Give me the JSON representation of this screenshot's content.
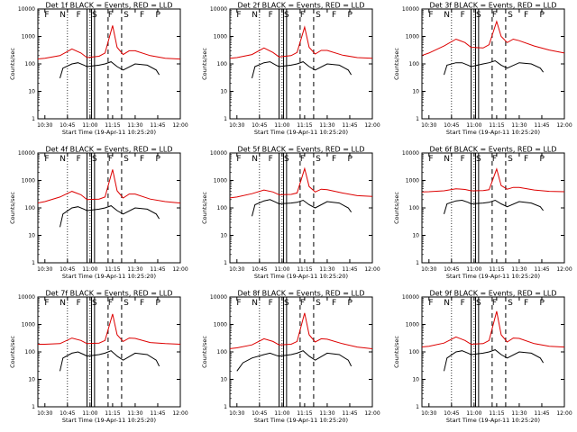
{
  "figure": {
    "background": "#ffffff"
  },
  "chart_data": {
    "type": "line",
    "y_scale": "log",
    "ylim": [
      1,
      10000
    ],
    "y_ticks": [
      "1",
      "10",
      "100",
      "1000",
      "10000"
    ],
    "x_range": [
      "10:25:20",
      "12:00"
    ],
    "x_ticks": [
      "10:30",
      "10:45",
      "11:00",
      "11:15",
      "11:30",
      "11:45",
      "12:00"
    ],
    "ylabel": "Counts/sec",
    "xlabel": "Start Time (19-Apr-11 10:25:20)",
    "colors": {
      "events": "#000000",
      "lld": "#dd0000"
    },
    "dotted_lines": [
      "10:45",
      "11:00"
    ],
    "solid_lines": [
      "10:58",
      "11:01",
      "11:03"
    ],
    "dashed_lines": [
      "11:12",
      "11:21"
    ],
    "markers": [
      "F",
      "N",
      "F",
      "S",
      "F",
      "S",
      "F",
      "P"
    ],
    "panels": [
      {
        "title": "Det 1f BLACK = Events, RED = LLD",
        "series": [
          {
            "name": "Events",
            "x": [
              "10:40",
              "10:42",
              "10:48",
              "10:52",
              "10:56",
              "10:58",
              "11:06",
              "11:10",
              "11:14",
              "11:18",
              "11:22",
              "11:30",
              "11:38",
              "11:44",
              "11:46"
            ],
            "y": [
              30,
              70,
              100,
              110,
              90,
              80,
              90,
              100,
              120,
              80,
              60,
              100,
              90,
              60,
              40
            ]
          },
          {
            "name": "LLD",
            "x": [
              "10:25",
              "10:30",
              "10:40",
              "10:48",
              "10:54",
              "10:58",
              "11:06",
              "11:10",
              "11:15",
              "11:18",
              "11:22",
              "11:26",
              "11:30",
              "11:40",
              "11:50",
              "12:00"
            ],
            "y": [
              150,
              160,
              200,
              350,
              250,
              170,
              190,
              250,
              2500,
              400,
              220,
              300,
              300,
              200,
              160,
              150
            ]
          }
        ]
      },
      {
        "title": "Det 2f BLACK = Events, RED = LLD",
        "series": [
          {
            "name": "Events",
            "x": [
              "10:40",
              "10:42",
              "10:48",
              "10:52",
              "10:56",
              "10:58",
              "11:06",
              "11:10",
              "11:14",
              "11:18",
              "11:22",
              "11:30",
              "11:38",
              "11:44",
              "11:46"
            ],
            "y": [
              30,
              80,
              110,
              120,
              90,
              80,
              90,
              100,
              120,
              80,
              60,
              100,
              90,
              60,
              40
            ]
          },
          {
            "name": "LLD",
            "x": [
              "10:25",
              "10:30",
              "10:40",
              "10:48",
              "10:54",
              "10:58",
              "11:06",
              "11:10",
              "11:15",
              "11:18",
              "11:22",
              "11:26",
              "11:30",
              "11:40",
              "11:50",
              "12:00"
            ],
            "y": [
              160,
              170,
              220,
              380,
              260,
              180,
              200,
              260,
              2200,
              400,
              230,
              310,
              310,
              210,
              170,
              160
            ]
          }
        ]
      },
      {
        "title": "Det 3f BLACK = Events, RED = LLD",
        "series": [
          {
            "name": "Events",
            "x": [
              "10:40",
              "10:42",
              "10:48",
              "10:52",
              "10:56",
              "10:58",
              "11:06",
              "11:10",
              "11:14",
              "11:18",
              "11:22",
              "11:30",
              "11:38",
              "11:44",
              "11:46"
            ],
            "y": [
              40,
              90,
              110,
              110,
              90,
              80,
              100,
              110,
              130,
              90,
              70,
              110,
              100,
              70,
              50
            ]
          },
          {
            "name": "LLD",
            "x": [
              "10:25",
              "10:30",
              "10:40",
              "10:48",
              "10:54",
              "10:58",
              "11:06",
              "11:10",
              "11:15",
              "11:18",
              "11:22",
              "11:26",
              "11:30",
              "11:40",
              "11:50",
              "12:00"
            ],
            "y": [
              200,
              250,
              450,
              800,
              600,
              400,
              380,
              500,
              3500,
              1000,
              600,
              800,
              700,
              450,
              320,
              250
            ]
          }
        ]
      },
      {
        "title": "Det 4f BLACK = Events, RED = LLD",
        "series": [
          {
            "name": "Events",
            "x": [
              "10:40",
              "10:42",
              "10:48",
              "10:52",
              "10:56",
              "10:58",
              "11:06",
              "11:10",
              "11:14",
              "11:18",
              "11:22",
              "11:30",
              "11:38",
              "11:44",
              "11:46"
            ],
            "y": [
              20,
              60,
              100,
              110,
              90,
              80,
              90,
              100,
              120,
              80,
              60,
              100,
              90,
              60,
              40
            ]
          },
          {
            "name": "LLD",
            "x": [
              "10:25",
              "10:30",
              "10:40",
              "10:48",
              "10:54",
              "10:58",
              "11:06",
              "11:10",
              "11:15",
              "11:18",
              "11:22",
              "11:26",
              "11:30",
              "11:40",
              "11:50",
              "12:00"
            ],
            "y": [
              150,
              170,
              250,
              400,
              300,
              200,
              210,
              250,
              2500,
              420,
              230,
              320,
              320,
              210,
              170,
              150
            ]
          }
        ]
      },
      {
        "title": "Det 5f BLACK = Events, RED = LLD",
        "series": [
          {
            "name": "Events",
            "x": [
              "10:40",
              "10:42",
              "10:48",
              "10:52",
              "10:56",
              "10:58",
              "11:06",
              "11:10",
              "11:14",
              "11:18",
              "11:22",
              "11:30",
              "11:38",
              "11:44",
              "11:46"
            ],
            "y": [
              50,
              130,
              180,
              200,
              160,
              140,
              150,
              160,
              190,
              130,
              100,
              170,
              150,
              100,
              70
            ]
          },
          {
            "name": "LLD",
            "x": [
              "10:25",
              "10:30",
              "10:40",
              "10:48",
              "10:54",
              "10:58",
              "11:06",
              "11:10",
              "11:15",
              "11:18",
              "11:22",
              "11:26",
              "11:30",
              "11:40",
              "11:50",
              "12:00"
            ],
            "y": [
              230,
              250,
              330,
              450,
              380,
              300,
              310,
              350,
              2700,
              600,
              380,
              480,
              460,
              350,
              280,
              260
            ]
          }
        ]
      },
      {
        "title": "Det 6f BLACK = Events, RED = LLD",
        "series": [
          {
            "name": "Events",
            "x": [
              "10:40",
              "10:42",
              "10:48",
              "10:52",
              "10:56",
              "10:58",
              "11:06",
              "11:10",
              "11:14",
              "11:18",
              "11:22",
              "11:30",
              "11:38",
              "11:44",
              "11:46"
            ],
            "y": [
              60,
              140,
              180,
              190,
              160,
              140,
              150,
              160,
              190,
              140,
              110,
              170,
              150,
              110,
              80
            ]
          },
          {
            "name": "LLD",
            "x": [
              "10:25",
              "10:30",
              "10:40",
              "10:48",
              "10:54",
              "10:58",
              "11:06",
              "11:10",
              "11:15",
              "11:18",
              "11:22",
              "11:26",
              "11:30",
              "11:40",
              "11:50",
              "12:00"
            ],
            "y": [
              380,
              390,
              420,
              500,
              470,
              420,
              430,
              460,
              2600,
              650,
              480,
              560,
              560,
              450,
              400,
              390
            ]
          }
        ]
      },
      {
        "title": "Det 7f BLACK = Events, RED = LLD",
        "series": [
          {
            "name": "Events",
            "x": [
              "10:40",
              "10:42",
              "10:48",
              "10:52",
              "10:56",
              "10:58",
              "11:06",
              "11:10",
              "11:14",
              "11:18",
              "11:22",
              "11:30",
              "11:38",
              "11:44",
              "11:46"
            ],
            "y": [
              20,
              60,
              90,
              100,
              80,
              70,
              80,
              90,
              110,
              70,
              50,
              90,
              80,
              50,
              30
            ]
          },
          {
            "name": "LLD",
            "x": [
              "10:25",
              "10:30",
              "10:40",
              "10:48",
              "10:54",
              "10:58",
              "11:06",
              "11:10",
              "11:15",
              "11:18",
              "11:22",
              "11:26",
              "11:30",
              "11:40",
              "11:50",
              "12:00"
            ],
            "y": [
              190,
              190,
              200,
              320,
              260,
              200,
              210,
              260,
              2400,
              420,
              240,
              320,
              310,
              220,
              200,
              190
            ]
          }
        ]
      },
      {
        "title": "Det 8f BLACK = Events, RED = LLD",
        "series": [
          {
            "name": "Events",
            "x": [
              "10:30",
              "10:34",
              "10:40",
              "10:48",
              "10:52",
              "10:56",
              "10:58",
              "11:06",
              "11:10",
              "11:14",
              "11:18",
              "11:22",
              "11:30",
              "11:38",
              "11:44",
              "11:46"
            ],
            "y": [
              20,
              40,
              60,
              80,
              90,
              75,
              70,
              80,
              90,
              110,
              70,
              50,
              90,
              80,
              50,
              30
            ]
          },
          {
            "name": "LLD",
            "x": [
              "10:25",
              "10:30",
              "10:40",
              "10:48",
              "10:54",
              "10:58",
              "11:06",
              "11:10",
              "11:15",
              "11:18",
              "11:22",
              "11:26",
              "11:30",
              "11:40",
              "11:50",
              "12:00"
            ],
            "y": [
              130,
              140,
              180,
              300,
              240,
              180,
              190,
              240,
              2600,
              420,
              230,
              300,
              290,
              200,
              150,
              130
            ]
          }
        ]
      },
      {
        "title": "Det 9f BLACK = Events, RED = LLD",
        "series": [
          {
            "name": "Events",
            "x": [
              "10:40",
              "10:42",
              "10:48",
              "10:52",
              "10:56",
              "10:58",
              "11:06",
              "11:10",
              "11:14",
              "11:18",
              "11:22",
              "11:30",
              "11:38",
              "11:44",
              "11:46"
            ],
            "y": [
              20,
              60,
              100,
              110,
              90,
              80,
              90,
              100,
              120,
              80,
              60,
              100,
              90,
              60,
              40
            ]
          },
          {
            "name": "LLD",
            "x": [
              "10:25",
              "10:30",
              "10:40",
              "10:48",
              "10:54",
              "10:58",
              "11:06",
              "11:10",
              "11:15",
              "11:18",
              "11:22",
              "11:26",
              "11:30",
              "11:40",
              "11:50",
              "12:00"
            ],
            "y": [
              150,
              160,
              210,
              350,
              260,
              190,
              200,
              260,
              3000,
              420,
              230,
              320,
              310,
              200,
              160,
              150
            ]
          }
        ]
      }
    ]
  }
}
